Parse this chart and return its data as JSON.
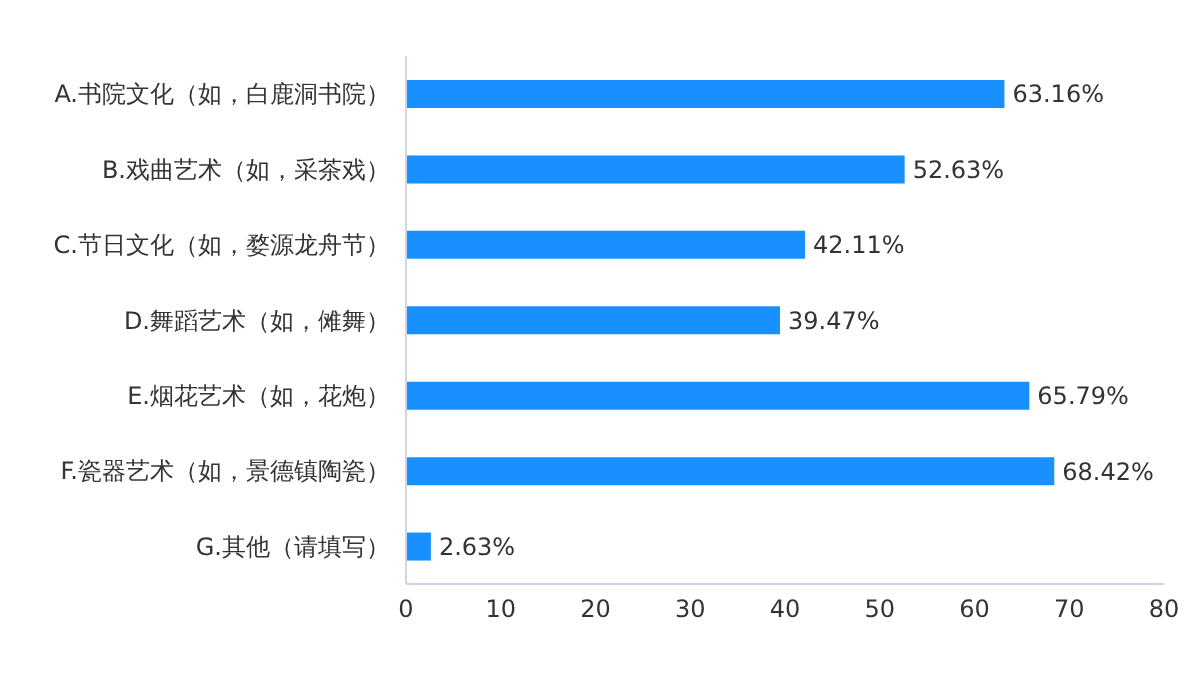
{
  "chart_data": {
    "type": "bar",
    "orientation": "horizontal",
    "categories": [
      "A.书院文化（如，白鹿洞书院）",
      "B.戏曲艺术（如，采茶戏）",
      "C.节日文化（如，婺源龙舟节）",
      "D.舞蹈艺术（如，傩舞）",
      "E.烟花艺术（如，花炮）",
      "F.瓷器艺术（如，景德镇陶瓷）",
      "G.其他（请填写）"
    ],
    "values": [
      63.16,
      52.63,
      42.11,
      39.47,
      65.79,
      68.42,
      2.63
    ],
    "value_labels": [
      "63.16%",
      "52.63%",
      "42.11%",
      "39.47%",
      "65.79%",
      "68.42%",
      "2.63%"
    ],
    "color": "#1890ff",
    "xlim": [
      0,
      80
    ],
    "xticks": [
      0,
      10,
      20,
      30,
      40,
      50,
      60,
      70,
      80
    ],
    "grid": false
  }
}
